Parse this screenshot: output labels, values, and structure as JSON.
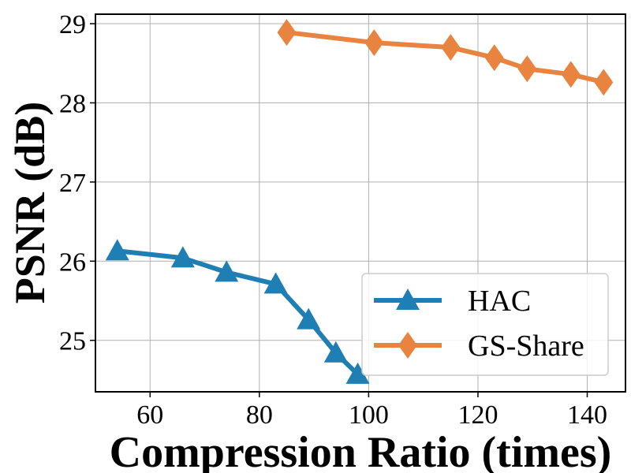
{
  "chart_data": {
    "type": "line",
    "xlabel": "Compression Ratio (times)",
    "ylabel": "PSNR (dB)",
    "xlim": [
      50,
      147
    ],
    "ylim": [
      24.35,
      29.12
    ],
    "xticks": [
      60,
      80,
      100,
      120,
      140
    ],
    "yticks": [
      25,
      26,
      27,
      28,
      29
    ],
    "grid": true,
    "legend_position": "lower-right",
    "series": [
      {
        "name": "HAC",
        "color": "#1f7eb3",
        "marker": "triangle",
        "x": [
          54,
          66,
          74,
          83,
          89,
          94,
          98
        ],
        "y": [
          26.13,
          26.04,
          25.86,
          25.71,
          25.26,
          24.84,
          24.57
        ]
      },
      {
        "name": "GS-Share",
        "color": "#e8843f",
        "marker": "diamond",
        "x": [
          85,
          101,
          115,
          123,
          129,
          137,
          143
        ],
        "y": [
          28.89,
          28.76,
          28.7,
          28.57,
          28.43,
          28.36,
          28.26
        ]
      }
    ]
  }
}
